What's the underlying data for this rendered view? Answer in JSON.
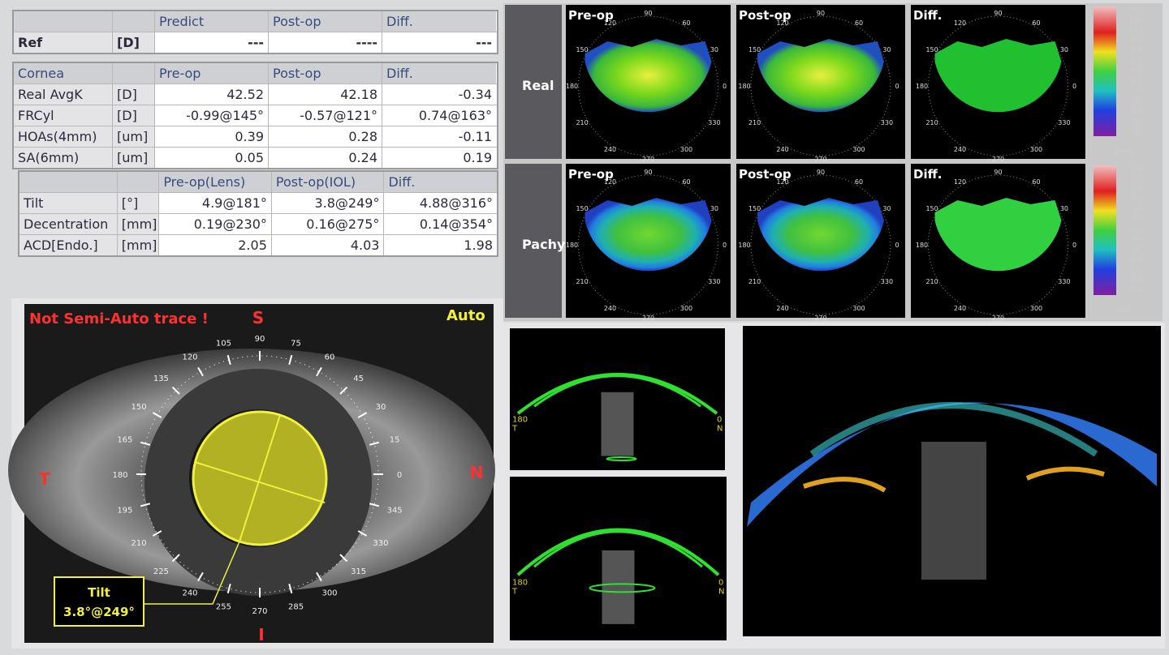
{
  "ref_table": {
    "columns": [
      "Predict",
      "Post-op",
      "Diff."
    ],
    "rows": [
      {
        "label": "Ref",
        "unit": "[D]",
        "cells": [
          "---",
          "----",
          "---"
        ]
      }
    ]
  },
  "cornea_table": {
    "title": "Cornea",
    "columns": [
      "Pre-op",
      "Post-op",
      "Diff."
    ],
    "rows": [
      {
        "label": "Real AvgK",
        "unit": "[D]",
        "cells": [
          "42.52",
          "42.18",
          "-0.34"
        ]
      },
      {
        "label": "FRCyl",
        "unit": "[D]",
        "cells": [
          "-0.99@145°",
          "-0.57@121°",
          "0.74@163°"
        ]
      },
      {
        "label": "HOAs(4mm)",
        "unit": "[um]",
        "cells": [
          "0.39",
          "0.28",
          "-0.11"
        ]
      },
      {
        "label": "SA(6mm)",
        "unit": "[um]",
        "cells": [
          "0.05",
          "0.24",
          "0.19"
        ]
      }
    ]
  },
  "lens_table": {
    "columns": [
      "Pre-op(Lens)",
      "Post-op(IOL)",
      "Diff."
    ],
    "rows": [
      {
        "label": "Tilt",
        "unit": "[°]",
        "cells": [
          "4.9@181°",
          "3.8@249°",
          "4.88@316°"
        ]
      },
      {
        "label": "Decentration",
        "unit": "[mm]",
        "cells": [
          "0.19@230°",
          "0.16@275°",
          "0.14@354°"
        ]
      },
      {
        "label": "ACD[Endo.]",
        "unit": "[mm]",
        "cells": [
          "2.05",
          "4.03",
          "1.98"
        ]
      }
    ]
  },
  "maps": {
    "panels": [
      "Pre-op",
      "Post-op",
      "Diff."
    ],
    "angles": [
      "90",
      "60",
      "30",
      "0",
      "330",
      "300",
      "270",
      "240",
      "210",
      "180",
      "150",
      "120"
    ],
    "rows": [
      {
        "label": "Real",
        "scale": [
          "18.0",
          "14.0",
          "12.0",
          "10.0",
          "8.0",
          "6.0",
          "4.0",
          "2.0",
          "0",
          "-2.0",
          "-4.0",
          "-6.0",
          "-8.0"
        ],
        "unit": "Diop"
      },
      {
        "label": "Pachy",
        "scale": [
          "-240",
          "-200",
          "-160",
          "-120",
          "-80",
          "-40",
          "0",
          "40",
          "80",
          "120",
          "160",
          "200",
          "240"
        ],
        "unit": "um"
      }
    ]
  },
  "eye": {
    "warning": "Not Semi-Auto trace !",
    "mode": "Auto",
    "superior": "S",
    "temporal": "T",
    "nasal": "N",
    "inferior": "I",
    "angles": [
      "0",
      "15",
      "30",
      "45",
      "60",
      "75",
      "90",
      "105",
      "120",
      "135",
      "150",
      "165",
      "180",
      "195",
      "210",
      "225",
      "240",
      "255",
      "270",
      "285",
      "300",
      "315",
      "330",
      "345"
    ],
    "tilt_label": "Tilt",
    "tilt_value": "3.8°@249°"
  },
  "oct": {
    "left_angle": "180",
    "left_side": "T",
    "right_angle": "0",
    "right_side": "N"
  }
}
